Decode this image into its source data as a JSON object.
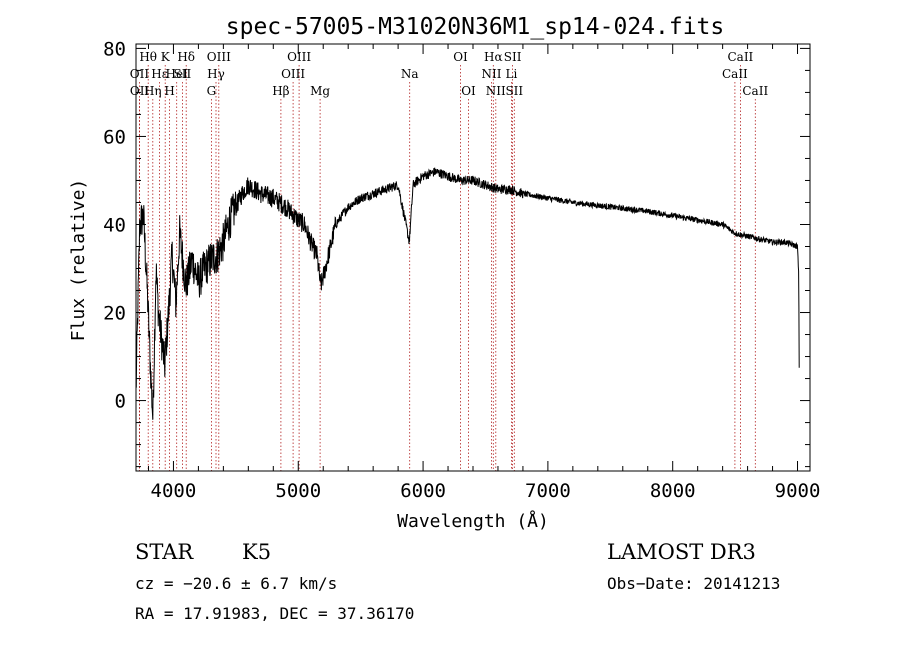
{
  "chart_data": {
    "type": "line",
    "title": "spec-57005-M31020N36M1_sp14-024.fits",
    "xlabel": "Wavelength (Å)",
    "ylabel": "Flux (relative)",
    "xlim": [
      3700,
      9100
    ],
    "ylim": [
      -16,
      81
    ],
    "xticks": [
      4000,
      5000,
      6000,
      7000,
      8000,
      9000
    ],
    "xtick_labels": [
      "4000",
      "5000",
      "6000",
      "7000",
      "8000",
      "9000"
    ],
    "yticks": [
      0,
      20,
      40,
      60,
      80
    ],
    "ytick_labels": [
      "0",
      "20",
      "40",
      "60",
      "80"
    ],
    "spectrum_anchors": [
      [
        3700,
        2
      ],
      [
        3730,
        40
      ],
      [
        3760,
        42
      ],
      [
        3790,
        25
      ],
      [
        3815,
        8
      ],
      [
        3835,
        -4
      ],
      [
        3860,
        30
      ],
      [
        3880,
        20
      ],
      [
        3900,
        15
      ],
      [
        3930,
        8
      ],
      [
        3960,
        20
      ],
      [
        3990,
        33
      ],
      [
        4020,
        22
      ],
      [
        4050,
        38
      ],
      [
        4100,
        26
      ],
      [
        4150,
        32
      ],
      [
        4200,
        27
      ],
      [
        4250,
        30
      ],
      [
        4300,
        32
      ],
      [
        4350,
        33
      ],
      [
        4400,
        36
      ],
      [
        4450,
        41
      ],
      [
        4500,
        44
      ],
      [
        4550,
        47
      ],
      [
        4600,
        49
      ],
      [
        4700,
        47
      ],
      [
        4800,
        46
      ],
      [
        4900,
        44
      ],
      [
        5000,
        41
      ],
      [
        5050,
        40
      ],
      [
        5100,
        36
      ],
      [
        5150,
        33
      ],
      [
        5180,
        26
      ],
      [
        5200,
        28
      ],
      [
        5300,
        40
      ],
      [
        5400,
        44
      ],
      [
        5500,
        46
      ],
      [
        5600,
        47
      ],
      [
        5700,
        48
      ],
      [
        5800,
        49
      ],
      [
        5890,
        36
      ],
      [
        5920,
        49
      ],
      [
        6000,
        51
      ],
      [
        6100,
        52
      ],
      [
        6200,
        51
      ],
      [
        6300,
        50
      ],
      [
        6400,
        50
      ],
      [
        6500,
        49
      ],
      [
        6600,
        48
      ],
      [
        6700,
        48
      ],
      [
        6800,
        47
      ],
      [
        7000,
        46
      ],
      [
        7200,
        45
      ],
      [
        7500,
        44
      ],
      [
        7800,
        43
      ],
      [
        8000,
        42
      ],
      [
        8200,
        41
      ],
      [
        8400,
        40
      ],
      [
        8500,
        38
      ],
      [
        8650,
        37
      ],
      [
        8800,
        36
      ],
      [
        8900,
        36
      ],
      [
        9000,
        35
      ],
      [
        9010,
        28
      ],
      [
        9015,
        0
      ]
    ],
    "spectral_lines": [
      {
        "name": "Hθ",
        "wavelength": 3798,
        "row": 0
      },
      {
        "name": "OII",
        "wavelength": 3727,
        "row": 1
      },
      {
        "name": "OII",
        "wavelength": 3729,
        "row": 2
      },
      {
        "name": "Hη",
        "wavelength": 3835,
        "row": 2
      },
      {
        "name": "K",
        "wavelength": 3934,
        "row": 0
      },
      {
        "name": "Hε",
        "wavelength": 3889,
        "row": 1
      },
      {
        "name": "H",
        "wavelength": 3969,
        "row": 2
      },
      {
        "name": "HeI",
        "wavelength": 4026,
        "row": 1
      },
      {
        "name": "Hδ",
        "wavelength": 4102,
        "row": 0
      },
      {
        "name": "SII",
        "wavelength": 4072,
        "row": 1
      },
      {
        "name": "OIII",
        "wavelength": 4363,
        "row": 0
      },
      {
        "name": "Hγ",
        "wavelength": 4341,
        "row": 1
      },
      {
        "name": "G",
        "wavelength": 4304,
        "row": 2
      },
      {
        "name": "Hβ",
        "wavelength": 4861,
        "row": 2
      },
      {
        "name": "OIII",
        "wavelength": 5007,
        "row": 0
      },
      {
        "name": "OIII",
        "wavelength": 4959,
        "row": 1
      },
      {
        "name": "Mg",
        "wavelength": 5175,
        "row": 2
      },
      {
        "name": "Na",
        "wavelength": 5893,
        "row": 1
      },
      {
        "name": "OI",
        "wavelength": 6300,
        "row": 0
      },
      {
        "name": "OI",
        "wavelength": 6364,
        "row": 2
      },
      {
        "name": "Hα",
        "wavelength": 6563,
        "row": 0
      },
      {
        "name": "NII",
        "wavelength": 6548,
        "row": 1
      },
      {
        "name": "NII",
        "wavelength": 6583,
        "row": 2
      },
      {
        "name": "SII",
        "wavelength": 6717,
        "row": 0
      },
      {
        "name": "Li",
        "wavelength": 6708,
        "row": 1
      },
      {
        "name": "SII",
        "wavelength": 6731,
        "row": 2
      },
      {
        "name": "CaII",
        "wavelength": 8542,
        "row": 0
      },
      {
        "name": "CaII",
        "wavelength": 8498,
        "row": 1
      },
      {
        "name": "CaII",
        "wavelength": 8662,
        "row": 2
      }
    ]
  },
  "info": {
    "class": "STAR",
    "subclass": "K5",
    "survey": "LAMOST DR3",
    "cz": "cz = −20.6 ± 6.7 km/s",
    "obs_date": "Obs−Date: 20141213",
    "coords": "RA =  17.91983, DEC =  37.36170"
  },
  "colors": {
    "spectrum": "#000000",
    "line_marker": "#b22222"
  }
}
